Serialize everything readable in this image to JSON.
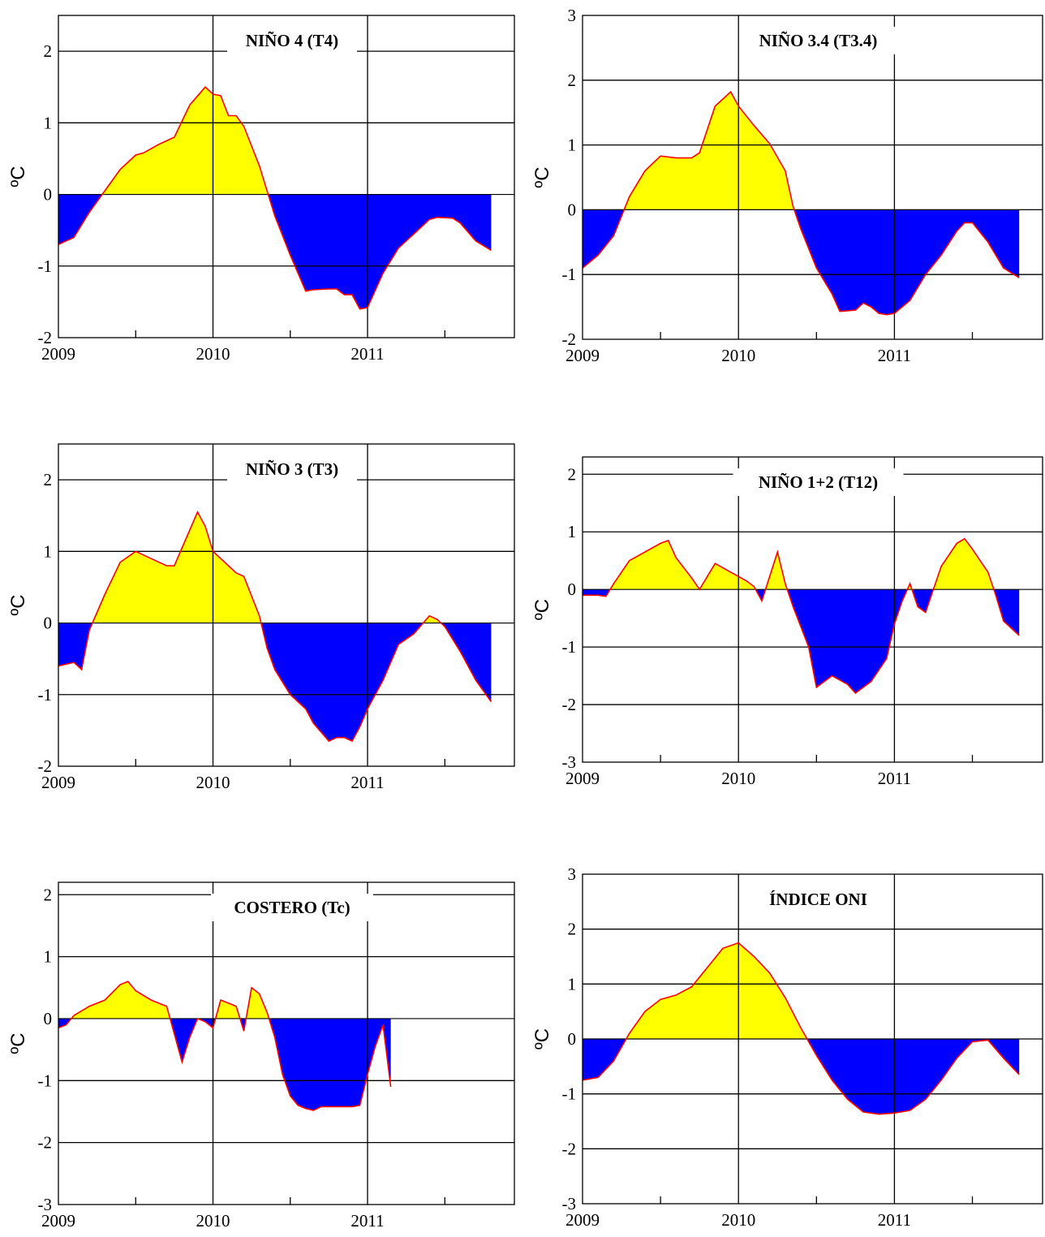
{
  "chart_data": [
    {
      "type": "area",
      "title": "NIÑO 4 (T4)",
      "ylabel": "ºC",
      "xlim": [
        2009,
        2011.95
      ],
      "ylim": [
        -2,
        2.5
      ],
      "yticks": [
        -2,
        -1,
        0,
        1,
        2
      ],
      "xticks": [
        2009,
        2010,
        2011
      ],
      "gridlines_y": [
        -1,
        0,
        1,
        2
      ],
      "gridlines_x": [
        2010,
        2011
      ],
      "positive_color": "#ffff00",
      "negative_color": "#0000ff",
      "line_color": "#ff0000",
      "series": [
        {
          "x": [
            2009.0,
            2009.1,
            2009.2,
            2009.3,
            2009.4,
            2009.5,
            2009.55,
            2009.65,
            2009.75,
            2009.85,
            2009.95,
            2010.0,
            2010.05,
            2010.1,
            2010.15,
            2010.2,
            2010.3,
            2010.35,
            2010.4,
            2010.5,
            2010.6,
            2010.65,
            2010.75,
            2010.8,
            2010.85,
            2010.9,
            2010.95,
            2011.0,
            2011.1,
            2011.2,
            2011.3,
            2011.4,
            2011.45,
            2011.55,
            2011.6,
            2011.7,
            2011.8
          ],
          "y": [
            -0.7,
            -0.6,
            -0.25,
            0.05,
            0.35,
            0.55,
            0.58,
            0.7,
            0.8,
            1.25,
            1.5,
            1.4,
            1.38,
            1.1,
            1.1,
            0.95,
            0.4,
            0.05,
            -0.3,
            -0.85,
            -1.35,
            -1.33,
            -1.32,
            -1.32,
            -1.4,
            -1.4,
            -1.6,
            -1.58,
            -1.1,
            -0.75,
            -0.55,
            -0.35,
            -0.32,
            -0.33,
            -0.4,
            -0.65,
            -0.78
          ]
        }
      ]
    },
    {
      "type": "area",
      "title": "NIÑO 3.4 (T3.4)",
      "ylabel": "ºC",
      "xlim": [
        2009,
        2011.95
      ],
      "ylim": [
        -2,
        3
      ],
      "yticks": [
        -2,
        -1,
        0,
        1,
        2,
        3
      ],
      "xticks": [
        2009,
        2010,
        2011
      ],
      "gridlines_y": [
        -1,
        0,
        1,
        2
      ],
      "gridlines_x": [
        2010,
        2011
      ],
      "positive_color": "#ffff00",
      "negative_color": "#0000ff",
      "line_color": "#ff0000",
      "series": [
        {
          "x": [
            2009.0,
            2009.1,
            2009.2,
            2009.3,
            2009.4,
            2009.5,
            2009.6,
            2009.7,
            2009.75,
            2009.85,
            2009.95,
            2010.0,
            2010.1,
            2010.2,
            2010.3,
            2010.35,
            2010.4,
            2010.5,
            2010.6,
            2010.65,
            2010.75,
            2010.8,
            2010.85,
            2010.9,
            2010.95,
            2011.0,
            2011.1,
            2011.2,
            2011.3,
            2011.4,
            2011.45,
            2011.5,
            2011.6,
            2011.7,
            2011.8
          ],
          "y": [
            -0.9,
            -0.7,
            -0.4,
            0.2,
            0.6,
            0.83,
            0.8,
            0.8,
            0.88,
            1.6,
            1.82,
            1.6,
            1.3,
            1.02,
            0.6,
            0.05,
            -0.3,
            -0.9,
            -1.3,
            -1.57,
            -1.55,
            -1.44,
            -1.5,
            -1.6,
            -1.62,
            -1.6,
            -1.4,
            -1.0,
            -0.7,
            -0.33,
            -0.2,
            -0.2,
            -0.5,
            -0.9,
            -1.05
          ]
        }
      ]
    },
    {
      "type": "area",
      "title": "NIÑO 3 (T3)",
      "ylabel": "ºC",
      "xlim": [
        2009,
        2011.95
      ],
      "ylim": [
        -2,
        2.5
      ],
      "yticks": [
        -2,
        -1,
        0,
        1,
        2
      ],
      "xticks": [
        2009,
        2010,
        2011
      ],
      "gridlines_y": [
        -1,
        0,
        1,
        2
      ],
      "gridlines_x": [
        2010,
        2011
      ],
      "positive_color": "#ffff00",
      "negative_color": "#0000ff",
      "line_color": "#ff0000",
      "series": [
        {
          "x": [
            2009.0,
            2009.1,
            2009.15,
            2009.2,
            2009.3,
            2009.4,
            2009.5,
            2009.6,
            2009.7,
            2009.75,
            2009.85,
            2009.9,
            2009.95,
            2010.0,
            2010.1,
            2010.15,
            2010.2,
            2010.3,
            2010.35,
            2010.4,
            2010.5,
            2010.6,
            2010.65,
            2010.75,
            2010.8,
            2010.85,
            2010.9,
            2010.95,
            2011.0,
            2011.1,
            2011.2,
            2011.3,
            2011.4,
            2011.45,
            2011.5,
            2011.6,
            2011.7,
            2011.8
          ],
          "y": [
            -0.6,
            -0.55,
            -0.65,
            -0.1,
            0.4,
            0.85,
            1.0,
            0.9,
            0.8,
            0.8,
            1.3,
            1.55,
            1.35,
            1.0,
            0.8,
            0.7,
            0.65,
            0.1,
            -0.35,
            -0.65,
            -1.0,
            -1.2,
            -1.4,
            -1.65,
            -1.6,
            -1.6,
            -1.65,
            -1.45,
            -1.2,
            -0.8,
            -0.3,
            -0.15,
            0.1,
            0.05,
            -0.05,
            -0.4,
            -0.8,
            -1.1
          ]
        }
      ]
    },
    {
      "type": "area",
      "title": "NIÑO 1+2 (T12)",
      "ylabel": "ºC",
      "xlim": [
        2009,
        2011.95
      ],
      "ylim": [
        -3,
        2.3
      ],
      "yticks": [
        -3,
        -2,
        -1,
        0,
        1,
        2
      ],
      "xticks": [
        2009,
        2010,
        2011
      ],
      "gridlines_y": [
        -2,
        -1,
        0,
        1,
        2
      ],
      "gridlines_x": [
        2010,
        2011
      ],
      "positive_color": "#ffff00",
      "negative_color": "#0000ff",
      "line_color": "#ff0000",
      "series": [
        {
          "x": [
            2009.0,
            2009.1,
            2009.15,
            2009.2,
            2009.3,
            2009.4,
            2009.5,
            2009.55,
            2009.6,
            2009.7,
            2009.75,
            2009.85,
            2009.95,
            2010.05,
            2010.1,
            2010.15,
            2010.25,
            2010.3,
            2010.35,
            2010.45,
            2010.5,
            2010.6,
            2010.7,
            2010.75,
            2010.85,
            2010.95,
            2011.0,
            2011.05,
            2011.1,
            2011.15,
            2011.2,
            2011.3,
            2011.4,
            2011.45,
            2011.5,
            2011.55,
            2011.6,
            2011.65,
            2011.7,
            2011.8
          ],
          "y": [
            -0.1,
            -0.1,
            -0.12,
            0.1,
            0.5,
            0.65,
            0.8,
            0.85,
            0.55,
            0.2,
            0.0,
            0.45,
            0.3,
            0.15,
            0.05,
            -0.2,
            0.65,
            0.1,
            -0.3,
            -1.0,
            -1.7,
            -1.5,
            -1.65,
            -1.8,
            -1.6,
            -1.2,
            -0.6,
            -0.2,
            0.1,
            -0.3,
            -0.4,
            0.4,
            0.8,
            0.88,
            0.7,
            0.5,
            0.3,
            -0.1,
            -0.55,
            -0.8
          ]
        }
      ]
    },
    {
      "type": "area",
      "title": "COSTERO (Tc)",
      "ylabel": "ºC",
      "xlim": [
        2009,
        2011.95
      ],
      "ylim": [
        -3,
        2.2
      ],
      "yticks": [
        -3,
        -2,
        -1,
        0,
        1,
        2
      ],
      "xticks": [
        2009,
        2010,
        2011
      ],
      "gridlines_y": [
        -2,
        -1,
        0,
        1,
        2
      ],
      "gridlines_x": [
        2010,
        2011
      ],
      "positive_color": "#ffff00",
      "negative_color": "#0000ff",
      "line_color": "#ff0000",
      "series": [
        {
          "x": [
            2009.0,
            2009.05,
            2009.1,
            2009.2,
            2009.3,
            2009.4,
            2009.45,
            2009.5,
            2009.6,
            2009.7,
            2009.75,
            2009.8,
            2009.85,
            2009.9,
            2009.95,
            2010.0,
            2010.05,
            2010.1,
            2010.15,
            2010.2,
            2010.25,
            2010.3,
            2010.35,
            2010.4,
            2010.45,
            2010.5,
            2010.55,
            2010.6,
            2010.65,
            2010.7,
            2010.75,
            2010.8,
            2010.85,
            2010.9,
            2010.95,
            2011.0,
            2011.05,
            2011.1,
            2011.15
          ],
          "y": [
            -0.15,
            -0.1,
            0.05,
            0.2,
            0.3,
            0.55,
            0.6,
            0.45,
            0.3,
            0.2,
            -0.25,
            -0.7,
            -0.3,
            0.0,
            -0.05,
            -0.15,
            0.3,
            0.25,
            0.2,
            -0.2,
            0.5,
            0.4,
            0.1,
            -0.3,
            -0.9,
            -1.25,
            -1.4,
            -1.45,
            -1.48,
            -1.42,
            -1.42,
            -1.42,
            -1.42,
            -1.42,
            -1.4,
            -0.9,
            -0.45,
            -0.1,
            -1.1
          ]
        }
      ]
    },
    {
      "type": "area",
      "title": "ÍNDICE ONI",
      "ylabel": "ºC",
      "xlim": [
        2009,
        2011.95
      ],
      "ylim": [
        -3,
        3
      ],
      "yticks": [
        -3,
        -2,
        -1,
        0,
        1,
        2,
        3
      ],
      "xticks": [
        2009,
        2010,
        2011
      ],
      "gridlines_y": [
        -2,
        -1,
        0,
        1,
        2
      ],
      "gridlines_x": [
        2010,
        2011
      ],
      "positive_color": "#ffff00",
      "negative_color": "#0000ff",
      "line_color": "#ff0000",
      "series": [
        {
          "x": [
            2009.0,
            2009.1,
            2009.2,
            2009.3,
            2009.4,
            2009.5,
            2009.6,
            2009.7,
            2009.8,
            2009.9,
            2010.0,
            2010.1,
            2010.2,
            2010.3,
            2010.4,
            2010.5,
            2010.6,
            2010.7,
            2010.8,
            2010.9,
            2011.0,
            2011.1,
            2011.2,
            2011.3,
            2011.4,
            2011.5,
            2011.6,
            2011.7,
            2011.8
          ],
          "y": [
            -0.75,
            -0.7,
            -0.4,
            0.1,
            0.5,
            0.72,
            0.8,
            0.95,
            1.3,
            1.65,
            1.75,
            1.5,
            1.2,
            0.75,
            0.2,
            -0.3,
            -0.75,
            -1.1,
            -1.33,
            -1.37,
            -1.35,
            -1.3,
            -1.1,
            -0.75,
            -0.35,
            -0.05,
            -0.02,
            -0.35,
            -0.65
          ]
        }
      ]
    }
  ]
}
